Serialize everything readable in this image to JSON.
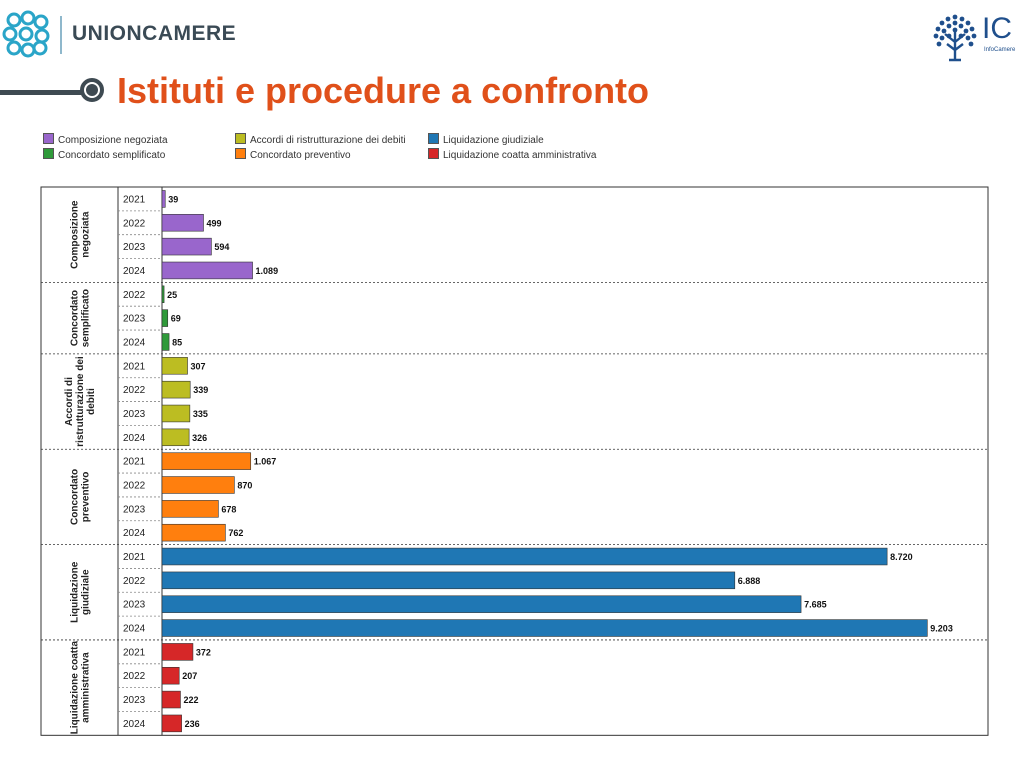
{
  "header": {
    "brand_name": "UNIONCAMERE",
    "ic_letters": "IC",
    "ic_subtitle": "InfoCamere"
  },
  "page_title": "Istituti e procedure a confronto",
  "chart_data": {
    "type": "bar",
    "orientation": "horizontal",
    "grouped_by": "istituto",
    "legend_position": "top",
    "grid": false,
    "xlim": [
      0,
      9500
    ],
    "groups": [
      {
        "name": "Composizione negoziata",
        "label_lines": [
          "Composizione",
          "negoziata"
        ],
        "color": "#9966cc",
        "categories": [
          "2021",
          "2022",
          "2023",
          "2024"
        ],
        "values": [
          39,
          499,
          594,
          1089
        ],
        "data_labels": [
          "39",
          "499",
          "594",
          "1.089"
        ]
      },
      {
        "name": "Concordato semplificato",
        "label_lines": [
          "Concordato",
          "semplificato"
        ],
        "color": "#2f9a3a",
        "categories": [
          "2022",
          "2023",
          "2024"
        ],
        "values": [
          25,
          69,
          85
        ],
        "data_labels": [
          "25",
          "69",
          "85"
        ]
      },
      {
        "name": "Accordi di ristrutturazione dei debiti",
        "label_lines": [
          "Accordi di",
          "ristrutturazione dei",
          "debiti"
        ],
        "color": "#bcbd22",
        "categories": [
          "2021",
          "2022",
          "2023",
          "2024"
        ],
        "values": [
          307,
          339,
          335,
          326
        ],
        "data_labels": [
          "307",
          "339",
          "335",
          "326"
        ]
      },
      {
        "name": "Concordato preventivo",
        "label_lines": [
          "Concordato",
          "preventivo"
        ],
        "color": "#ff7f0e",
        "categories": [
          "2021",
          "2022",
          "2023",
          "2024"
        ],
        "values": [
          1067,
          870,
          678,
          762
        ],
        "data_labels": [
          "1.067",
          "870",
          "678",
          "762"
        ]
      },
      {
        "name": "Liquidazione giudiziale",
        "label_lines": [
          "Liquidazione",
          "giudiziale"
        ],
        "color": "#1f77b4",
        "categories": [
          "2021",
          "2022",
          "2023",
          "2024"
        ],
        "values": [
          8720,
          6888,
          7685,
          9203
        ],
        "data_labels": [
          "8.720",
          "6.888",
          "7.685",
          "9.203"
        ]
      },
      {
        "name": "Liquidazione coatta amministrativa",
        "label_lines": [
          "Liquidazione coatta",
          "amministrativa"
        ],
        "color": "#d62728",
        "categories": [
          "2021",
          "2022",
          "2023",
          "2024"
        ],
        "values": [
          372,
          207,
          222,
          236
        ],
        "data_labels": [
          "372",
          "207",
          "222",
          "236"
        ]
      }
    ]
  }
}
